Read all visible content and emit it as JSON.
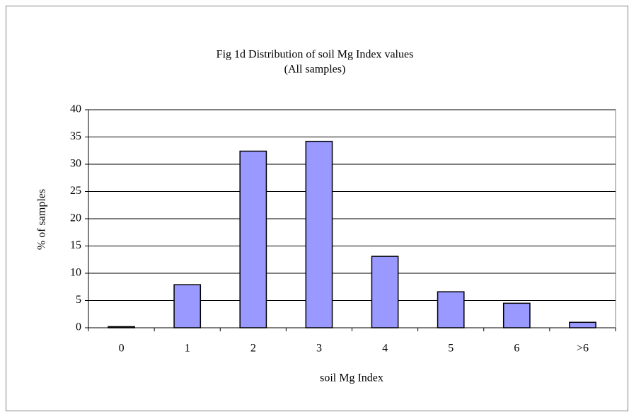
{
  "chart_data": {
    "type": "bar",
    "title": "Fig 1d Distribution of soil Mg Index values",
    "subtitle": "(All samples)",
    "x_label": "soil Mg Index",
    "y_label": "% of samples",
    "categories": [
      "0",
      "1",
      "2",
      "3",
      "4",
      "5",
      "6",
      ">6"
    ],
    "values": [
      0.2,
      7.9,
      32.4,
      34.2,
      13.1,
      6.6,
      4.5,
      1.0
    ],
    "color": "#9999ff",
    "ylim": [
      0,
      40
    ],
    "yticks": [
      0,
      5,
      10,
      15,
      20,
      25,
      30,
      35,
      40
    ],
    "grid": true
  }
}
